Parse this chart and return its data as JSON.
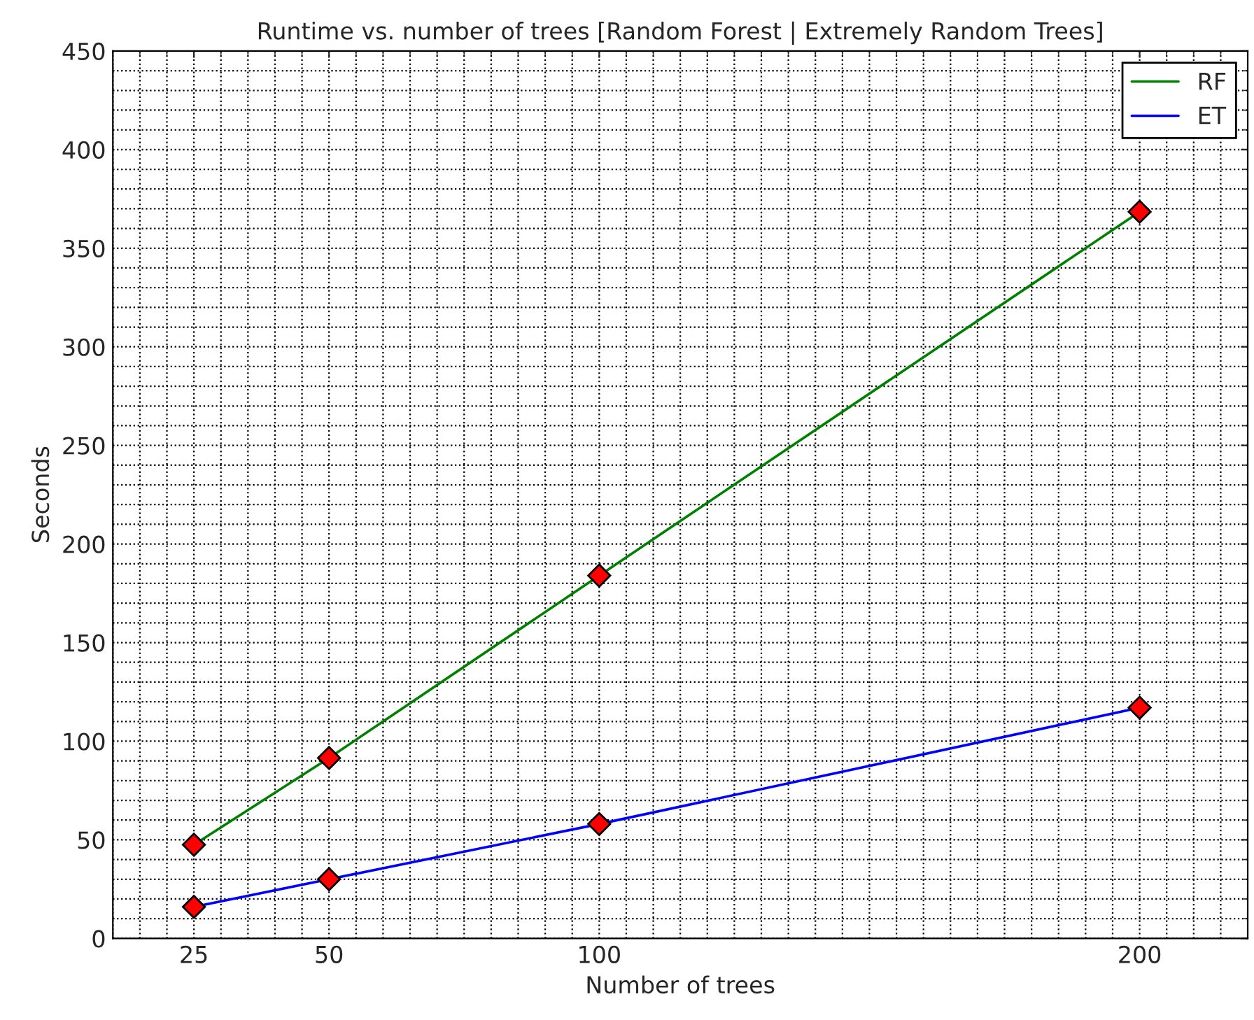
{
  "chart_data": {
    "type": "line",
    "title": "Runtime vs. number of trees [Random Forest | Extremely Random Trees]",
    "xlabel": "Number of trees",
    "ylabel": "Seconds",
    "x": [
      25,
      50,
      100,
      200
    ],
    "series": [
      {
        "name": "RF",
        "color": "#008000",
        "values": [
          47.5,
          91.5,
          184,
          368.5
        ]
      },
      {
        "name": "ET",
        "color": "#0000ff",
        "values": [
          16,
          30,
          58,
          117
        ]
      }
    ],
    "xlim": [
      10,
      220
    ],
    "xticks": [
      25,
      50,
      100,
      200
    ],
    "ylim": [
      0,
      450
    ],
    "yticks": [
      0,
      50,
      100,
      150,
      200,
      250,
      300,
      350,
      400,
      450
    ],
    "grid": true,
    "legend": "top right",
    "marker": "diamond",
    "line_style": "solid"
  }
}
